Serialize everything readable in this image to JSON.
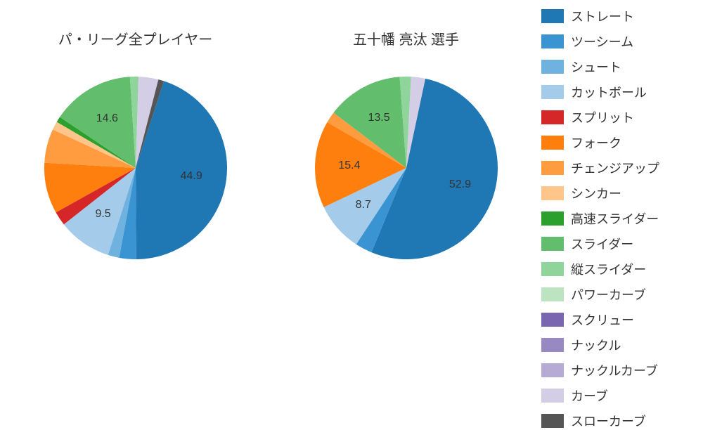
{
  "background_color": "#ffffff",
  "text_color": "#333333",
  "title_fontsize": 20,
  "label_fontsize": 16,
  "legend_fontsize": 18,
  "pitch_types": [
    {
      "key": "straight",
      "label": "ストレート",
      "color": "#1f77b4"
    },
    {
      "key": "twoseam",
      "label": "ツーシーム",
      "color": "#3a94d1"
    },
    {
      "key": "shoot",
      "label": "シュート",
      "color": "#6fb1df"
    },
    {
      "key": "cutball",
      "label": "カットボール",
      "color": "#a4cbe9"
    },
    {
      "key": "split",
      "label": "スプリット",
      "color": "#d62728"
    },
    {
      "key": "fork",
      "label": "フォーク",
      "color": "#ff7f0e"
    },
    {
      "key": "changeup",
      "label": "チェンジアップ",
      "color": "#ff9c3f"
    },
    {
      "key": "sinker",
      "label": "シンカー",
      "color": "#ffc58a"
    },
    {
      "key": "hs_slider",
      "label": "高速スライダー",
      "color": "#2ca02c"
    },
    {
      "key": "slider",
      "label": "スライダー",
      "color": "#62bd6d"
    },
    {
      "key": "v_slider",
      "label": "縦スライダー",
      "color": "#8fd49a"
    },
    {
      "key": "power_curve",
      "label": "パワーカーブ",
      "color": "#bce4c0"
    },
    {
      "key": "screw",
      "label": "スクリュー",
      "color": "#7965b0"
    },
    {
      "key": "knuckle",
      "label": "ナックル",
      "color": "#9889c2"
    },
    {
      "key": "knuckle_curve",
      "label": "ナックルカーブ",
      "color": "#b6abd4"
    },
    {
      "key": "curve",
      "label": "カーブ",
      "color": "#d4cde6"
    },
    {
      "key": "slow_curve",
      "label": "スローカーブ",
      "color": "#555555"
    }
  ],
  "charts": [
    {
      "id": "league",
      "title": "パ・リーグ全プレイヤー",
      "type": "pie",
      "radius": 130,
      "start_angle_deg": 72,
      "direction": "cw",
      "slices": [
        {
          "key": "straight",
          "value": 44.9,
          "show_label": true
        },
        {
          "key": "twoseam",
          "value": 3.0
        },
        {
          "key": "shoot",
          "value": 2.0
        },
        {
          "key": "cutball",
          "value": 9.5,
          "show_label": true
        },
        {
          "key": "split",
          "value": 2.5
        },
        {
          "key": "fork",
          "value": 9.0
        },
        {
          "key": "changeup",
          "value": 6.0
        },
        {
          "key": "sinker",
          "value": 1.5
        },
        {
          "key": "hs_slider",
          "value": 1.0
        },
        {
          "key": "slider",
          "value": 14.6,
          "show_label": true
        },
        {
          "key": "v_slider",
          "value": 1.5
        },
        {
          "key": "curve",
          "value": 3.5
        },
        {
          "key": "slow_curve",
          "value": 1.0
        }
      ]
    },
    {
      "id": "player",
      "title": "五十幡 亮汰  選手",
      "type": "pie",
      "radius": 130,
      "start_angle_deg": 78,
      "direction": "cw",
      "slices": [
        {
          "key": "straight",
          "value": 52.9,
          "show_label": true
        },
        {
          "key": "twoseam",
          "value": 3.0
        },
        {
          "key": "cutball",
          "value": 8.7,
          "show_label": true
        },
        {
          "key": "fork",
          "value": 15.4,
          "show_label": true
        },
        {
          "key": "changeup",
          "value": 2.0
        },
        {
          "key": "slider",
          "value": 13.5,
          "show_label": true
        },
        {
          "key": "v_slider",
          "value": 2.0
        },
        {
          "key": "curve",
          "value": 2.5
        }
      ]
    }
  ]
}
